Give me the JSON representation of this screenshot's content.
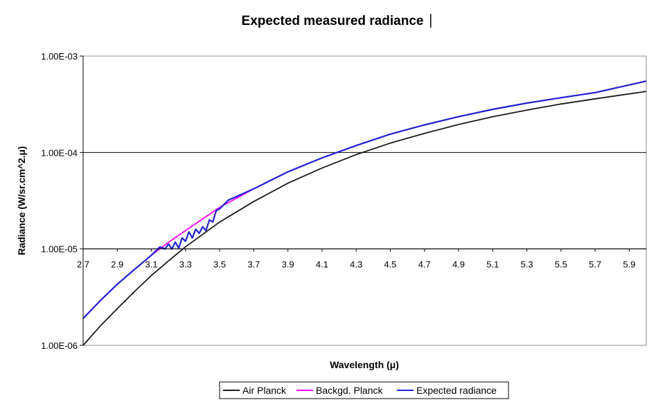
{
  "chart_data": {
    "type": "line",
    "title": "Expected measured radiance",
    "xlabel": "Wavelength (μ)",
    "ylabel": "Radiance (W/sr.cm^2.μ)",
    "xlim": [
      2.7,
      6.0
    ],
    "ylim": [
      1e-06,
      0.001
    ],
    "y_scale": "log",
    "x_ticks": [
      "2.7",
      "2.9",
      "3.1",
      "3.3",
      "3.5",
      "3.7",
      "3.9",
      "4.1",
      "4.3",
      "4.5",
      "4.7",
      "4.9",
      "5.1",
      "5.3",
      "5.5",
      "5.7",
      "5.9"
    ],
    "y_ticks": [
      "1.00E-06",
      "1.00E-05",
      "1.00E-04",
      "1.00E-03"
    ],
    "grid": "horizontal major lines",
    "legend_position": "bottom",
    "series": [
      {
        "name": "Air Planck",
        "color": "#1a1a1a",
        "x": [
          2.7,
          2.8,
          2.9,
          3.0,
          3.1,
          3.2,
          3.3,
          3.5,
          3.7,
          3.9,
          4.1,
          4.3,
          4.5,
          4.7,
          4.9,
          5.1,
          5.3,
          5.5,
          5.7,
          6.0
        ],
        "y": [
          1e-06,
          1.58e-06,
          2.4e-06,
          3.6e-06,
          5.3e-06,
          7.5e-06,
          1.05e-05,
          1.9e-05,
          3.1e-05,
          4.8e-05,
          6.9e-05,
          9.5e-05,
          0.000125,
          0.000158,
          0.000195,
          0.000235,
          0.000275,
          0.000318,
          0.00036,
          0.00043
        ]
      },
      {
        "name": "Backgd. Planck",
        "color": "#ff00ff",
        "x": [
          2.7,
          2.8,
          2.9,
          3.0,
          3.1,
          3.2,
          3.3,
          3.5,
          3.7,
          3.9,
          4.1,
          4.3,
          4.5,
          4.7,
          4.9,
          5.1,
          5.3,
          5.5,
          5.7,
          6.0
        ],
        "y": [
          1.9e-06,
          2.9e-06,
          4.3e-06,
          6.1e-06,
          8.6e-06,
          1.17e-05,
          1.55e-05,
          2.7e-05,
          4.2e-05,
          6.3e-05,
          8.8e-05,
          0.000118,
          0.000155,
          0.000193,
          0.000235,
          0.00028,
          0.000325,
          0.00037,
          0.000418,
          0.00055
        ]
      },
      {
        "name": "Expected radiance",
        "color": "#1f1fd6",
        "x": [
          2.7,
          2.8,
          2.9,
          3.0,
          3.1,
          3.15,
          3.18,
          3.2,
          3.22,
          3.24,
          3.26,
          3.28,
          3.3,
          3.32,
          3.34,
          3.36,
          3.38,
          3.4,
          3.42,
          3.44,
          3.46,
          3.48,
          3.5,
          3.55,
          3.6,
          3.7,
          3.9,
          4.1,
          4.3,
          4.5,
          4.7,
          4.9,
          5.1,
          5.3,
          5.5,
          5.7,
          6.0
        ],
        "y": [
          1.9e-06,
          2.9e-06,
          4.3e-06,
          6.1e-06,
          8.6e-06,
          1.05e-05,
          1e-05,
          1.12e-05,
          1e-05,
          1.18e-05,
          1.02e-05,
          1.3e-05,
          1.2e-05,
          1.5e-05,
          1.3e-05,
          1.6e-05,
          1.45e-05,
          1.7e-05,
          1.55e-05,
          2e-05,
          1.9e-05,
          2.5e-05,
          2.6e-05,
          3.2e-05,
          3.5e-05,
          4.2e-05,
          6.3e-05,
          8.8e-05,
          0.000118,
          0.000155,
          0.000193,
          0.000235,
          0.00028,
          0.000325,
          0.00037,
          0.000418,
          0.00055
        ]
      }
    ]
  }
}
